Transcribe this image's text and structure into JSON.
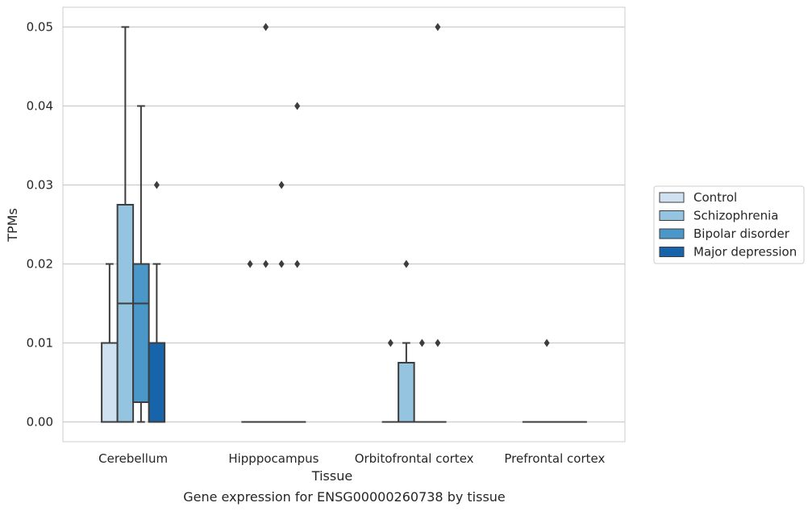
{
  "chart_data": {
    "type": "box",
    "xlabel": "Tissue",
    "ylabel": "TPMs",
    "caption": "Gene expression for ENSG00000260738 by tissue",
    "ylim": [
      -0.0025,
      0.0525
    ],
    "yticks": [
      "0.00",
      "0.01",
      "0.02",
      "0.03",
      "0.04",
      "0.05"
    ],
    "grid": "horizontal",
    "legend_position": "right",
    "categories": [
      "Cerebellum",
      "Hipppocampus",
      "Orbitofrontal cortex",
      "Prefrontal cortex"
    ],
    "series": [
      {
        "name": "Control",
        "color": "#d0e1f2",
        "boxes": [
          {
            "q1": 0,
            "median": 0,
            "q3": 0.01,
            "whislo": 0,
            "whishi": 0.02,
            "fliers": []
          },
          {
            "q1": 0,
            "median": 0,
            "q3": 0,
            "whislo": 0,
            "whishi": 0,
            "fliers": [
              0.02
            ]
          },
          {
            "q1": 0,
            "median": 0,
            "q3": 0,
            "whislo": 0,
            "whishi": 0,
            "fliers": [
              0.01
            ]
          },
          {
            "q1": 0,
            "median": 0,
            "q3": 0,
            "whislo": 0,
            "whishi": 0,
            "fliers": []
          }
        ]
      },
      {
        "name": "Schizophrenia",
        "color": "#94c4df",
        "boxes": [
          {
            "q1": 0,
            "median": 0.015,
            "q3": 0.0275,
            "whislo": 0,
            "whishi": 0.05,
            "fliers": []
          },
          {
            "q1": 0,
            "median": 0,
            "q3": 0,
            "whislo": 0,
            "whishi": 0,
            "fliers": [
              0.02,
              0.05
            ]
          },
          {
            "q1": 0,
            "median": 0,
            "q3": 0.0075,
            "whislo": 0,
            "whishi": 0.01,
            "fliers": [
              0.02
            ]
          },
          {
            "q1": 0,
            "median": 0,
            "q3": 0,
            "whislo": 0,
            "whishi": 0,
            "fliers": [
              0.01
            ]
          }
        ]
      },
      {
        "name": "Bipolar disorder",
        "color": "#4a98c9",
        "boxes": [
          {
            "q1": 0.0025,
            "median": 0.015,
            "q3": 0.02,
            "whislo": 0,
            "whishi": 0.04,
            "fliers": []
          },
          {
            "q1": 0,
            "median": 0,
            "q3": 0,
            "whislo": 0,
            "whishi": 0,
            "fliers": [
              0.02,
              0.03
            ]
          },
          {
            "q1": 0,
            "median": 0,
            "q3": 0,
            "whislo": 0,
            "whishi": 0,
            "fliers": [
              0.01
            ]
          },
          {
            "q1": 0,
            "median": 0,
            "q3": 0,
            "whislo": 0,
            "whishi": 0,
            "fliers": []
          }
        ]
      },
      {
        "name": "Major depression",
        "color": "#1764ab",
        "boxes": [
          {
            "q1": 0,
            "median": 0,
            "q3": 0.01,
            "whislo": 0,
            "whishi": 0.02,
            "fliers": [
              0.03
            ]
          },
          {
            "q1": 0,
            "median": 0,
            "q3": 0,
            "whislo": 0,
            "whishi": 0,
            "fliers": [
              0.02,
              0.04
            ]
          },
          {
            "q1": 0,
            "median": 0,
            "q3": 0,
            "whislo": 0,
            "whishi": 0,
            "fliers": [
              0.01,
              0.05
            ]
          },
          {
            "q1": 0,
            "median": 0,
            "q3": 0,
            "whislo": 0,
            "whishi": 0,
            "fliers": []
          }
        ]
      }
    ],
    "colors": {
      "grid": "#cccccc",
      "frame": "#cccccc",
      "line": "#3d3d3d",
      "legend_border": "#cccccc"
    }
  }
}
